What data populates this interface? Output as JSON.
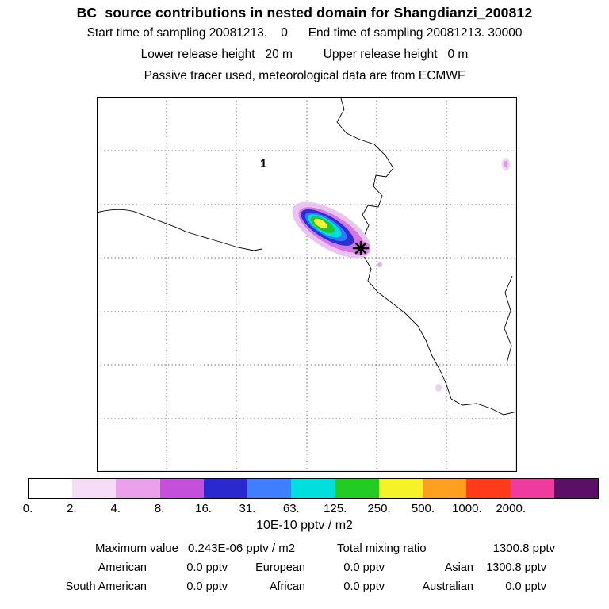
{
  "header": {
    "title": "BC  source contributions in nested domain for Shangdianzi_200812",
    "line1": "Start time of sampling 20081213.    0      End time of sampling 20081213. 30000",
    "line2": "Lower release height   20 m         Upper release height   0 m",
    "line3": "Passive tracer used, meteorological data are from ECMWF"
  },
  "map": {
    "region_label": "1"
  },
  "colorbar": {
    "unit_label": "10E-10 pptv / m2",
    "tick_labels": [
      "0.",
      "2.",
      "4.",
      "8.",
      "16.",
      "31.",
      "63.",
      "125.",
      "250.",
      "500.",
      "1000.",
      "2000."
    ],
    "segment_colors": [
      "#ffffff",
      "#f6dcf6",
      "#eba0eb",
      "#c44fd9",
      "#2929cf",
      "#3f7fff",
      "#00dede",
      "#22cc22",
      "#f5f229",
      "#ff9f1f",
      "#ff3b1c",
      "#ef3a9f",
      "#5c0f66"
    ]
  },
  "stats": {
    "max_label": "Maximum value",
    "max_value": "0.243E-06 pptv / m2",
    "total_label": "Total mixing ratio",
    "total_value": "1300.8 pptv",
    "contributions": [
      {
        "label": "American",
        "value": "0.0 pptv"
      },
      {
        "label": "European",
        "value": "0.0 pptv"
      },
      {
        "label": "Asian",
        "value": "1300.8 pptv"
      },
      {
        "label": "South American",
        "value": "0.0 pptv"
      },
      {
        "label": "African",
        "value": "0.0 pptv"
      },
      {
        "label": "Australian",
        "value": "0.0 pptv"
      }
    ]
  },
  "chart_data": {
    "type": "heatmap",
    "title": "BC  source contributions in nested domain for Shangdianzi_200812",
    "subtitle_lines": [
      "Start time of sampling 20081213.    0      End time of sampling 20081213. 30000",
      "Lower release height   20 m         Upper release height   0 m",
      "Passive tracer used, meteorological data are from ECMWF"
    ],
    "unit": "10E-10 pptv / m2",
    "colorbar_levels": [
      0,
      2,
      4,
      8,
      16,
      31,
      63,
      125,
      250,
      500,
      1000,
      2000
    ],
    "maximum_value": "0.243E-06 pptv / m2",
    "total_mixing_ratio_pptv": 1300.8,
    "contributions_pptv": {
      "American": 0.0,
      "European": 0.0,
      "Asian": 1300.8,
      "South American": 0.0,
      "African": 0.0,
      "Australian": 0.0
    },
    "map_label": "1",
    "legend_position": "bottom"
  }
}
